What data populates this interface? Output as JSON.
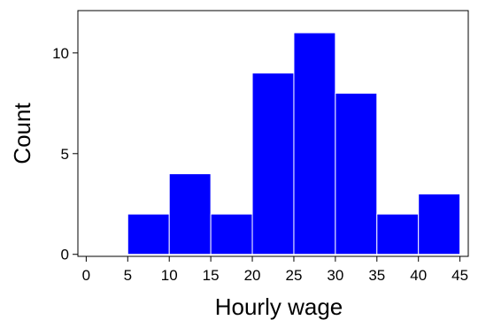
{
  "chart_data": {
    "type": "bar",
    "subtype": "histogram",
    "title": "",
    "xlabel": "Hourly wage",
    "ylabel": "Count",
    "bin_width": 5,
    "bins": [
      {
        "start": 5,
        "end": 10,
        "count": 2
      },
      {
        "start": 10,
        "end": 15,
        "count": 4
      },
      {
        "start": 15,
        "end": 20,
        "count": 2
      },
      {
        "start": 20,
        "end": 25,
        "count": 9
      },
      {
        "start": 25,
        "end": 30,
        "count": 11
      },
      {
        "start": 30,
        "end": 35,
        "count": 8
      },
      {
        "start": 35,
        "end": 40,
        "count": 2
      },
      {
        "start": 40,
        "end": 45,
        "count": 3
      }
    ],
    "xlim": [
      -1,
      46
    ],
    "ylim": [
      -0.1,
      12.1
    ],
    "x_ticks": [
      0,
      5,
      10,
      15,
      20,
      25,
      30,
      35,
      40,
      45
    ],
    "y_ticks": [
      0,
      5,
      10
    ],
    "bar_color": "#0000ff",
    "bar_edge_color": "#ffffff",
    "grid": false,
    "legend": "none"
  }
}
